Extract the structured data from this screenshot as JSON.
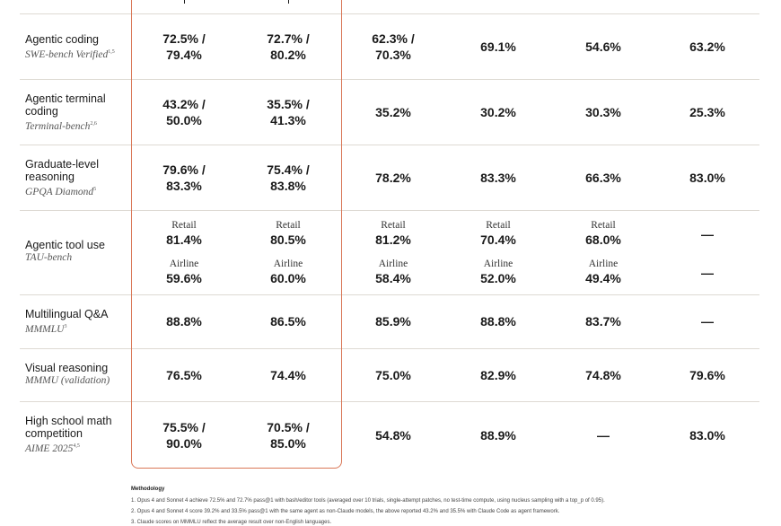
{
  "chart_data": {
    "type": "table",
    "accent_color": "#d97757",
    "rows": [
      {
        "benchmark": "Agentic coding",
        "source": "SWE-bench Verified",
        "sup": "1,5",
        "cells": [
          [
            "72.5% /",
            "79.4%"
          ],
          [
            "72.7% /",
            "80.2%"
          ],
          [
            "62.3% /",
            "70.3%"
          ],
          [
            "69.1%"
          ],
          [
            "54.6%"
          ],
          [
            "63.2%"
          ]
        ]
      },
      {
        "benchmark": "Agentic terminal coding",
        "source": "Terminal-bench",
        "sup": "2,6",
        "cells": [
          [
            "43.2% /",
            "50.0%"
          ],
          [
            "35.5% /",
            "41.3%"
          ],
          [
            "35.2%"
          ],
          [
            "30.2%"
          ],
          [
            "30.3%"
          ],
          [
            "25.3%"
          ]
        ]
      },
      {
        "benchmark": "Graduate-level reasoning",
        "source": "GPQA Diamond",
        "sup": "5",
        "cells": [
          [
            "79.6% /",
            "83.3%"
          ],
          [
            "75.4% /",
            "83.8%"
          ],
          [
            "78.2%"
          ],
          [
            "83.3%"
          ],
          [
            "66.3%"
          ],
          [
            "83.0%"
          ]
        ]
      },
      {
        "benchmark": "Agentic tool use",
        "source": "TAU-bench",
        "sup": "",
        "retail_label": "Retail",
        "airline_label": "Airline",
        "retail": [
          "81.4%",
          "80.5%",
          "81.2%",
          "70.4%",
          "68.0%",
          "—"
        ],
        "airline": [
          "59.6%",
          "60.0%",
          "58.4%",
          "52.0%",
          "49.4%",
          "—"
        ]
      },
      {
        "benchmark": "Multilingual Q&A",
        "source": "MMMLU",
        "sup": "3",
        "cells": [
          [
            "88.8%"
          ],
          [
            "86.5%"
          ],
          [
            "85.9%"
          ],
          [
            "88.8%"
          ],
          [
            "83.7%"
          ],
          [
            "—"
          ]
        ]
      },
      {
        "benchmark": "Visual reasoning",
        "source": "MMMU (validation)",
        "sup": "",
        "cells": [
          [
            "76.5%"
          ],
          [
            "74.4%"
          ],
          [
            "75.0%"
          ],
          [
            "82.9%"
          ],
          [
            "74.8%"
          ],
          [
            "79.6%"
          ]
        ]
      },
      {
        "benchmark": "High school math competition",
        "source": "AIME 2025",
        "sup": "4,5",
        "cells": [
          [
            "75.5% /",
            "90.0%"
          ],
          [
            "70.5% /",
            "85.0%"
          ],
          [
            "54.8%"
          ],
          [
            "88.9%"
          ],
          [
            "—"
          ],
          [
            "83.0%"
          ]
        ]
      }
    ]
  },
  "footer": {
    "title": "Methodology",
    "notes": [
      "1. Opus 4 and Sonnet 4 achieve 72.5% and 72.7% pass@1 with bash/editor tools (averaged over 10 trials, single-attempt patches, no test-time compute, using nucleus sampling with a top_p of 0.95).",
      "2. Opus 4 and Sonnet 4 score 39.2% and 33.5% pass@1 with the same agent as non-Claude models, the above reported 43.2% and 35.5% with Claude Code as agent framework.",
      "3. Claude scores on MMMLU reflect the average result over non-English languages."
    ]
  }
}
